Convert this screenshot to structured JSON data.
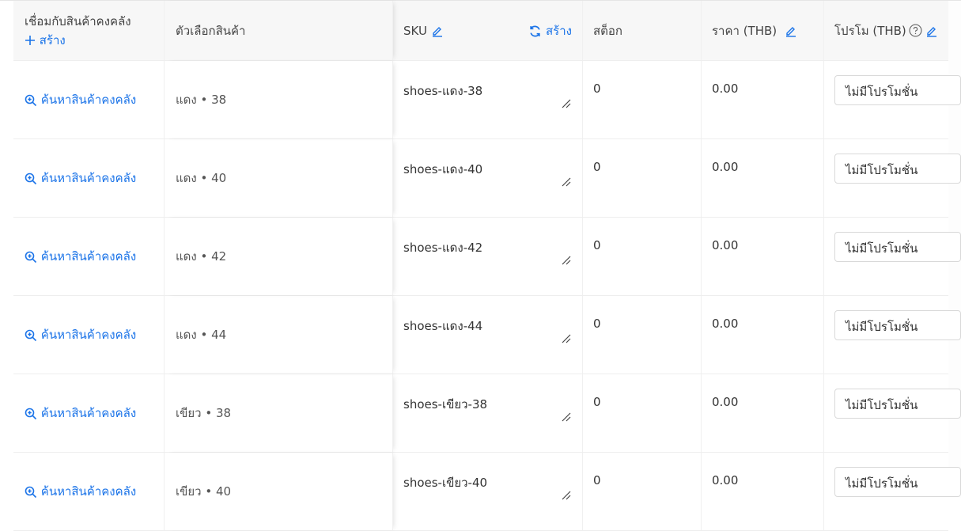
{
  "header": {
    "link_col": "เชื่อมกับสินค้าคงคลัง",
    "create_label": "สร้าง",
    "option_col": "ตัวเลือกสินค้า",
    "sku_col": "SKU",
    "sku_generate": "สร้าง",
    "stock_col": "สต็อก",
    "price_col": "ราคา (THB)",
    "promo_col": "โปรโม (THB)"
  },
  "accent_color": "#1a73e8",
  "rows": [
    {
      "link": "ค้นหาสินค้าคงคลัง",
      "option": "แดง • 38",
      "sku": "shoes-แดง-38",
      "stock": "0",
      "price": "0.00",
      "promo": "ไม่มีโปรโมชั่น"
    },
    {
      "link": "ค้นหาสินค้าคงคลัง",
      "option": "แดง • 40",
      "sku": "shoes-แดง-40",
      "stock": "0",
      "price": "0.00",
      "promo": "ไม่มีโปรโมชั่น"
    },
    {
      "link": "ค้นหาสินค้าคงคลัง",
      "option": "แดง • 42",
      "sku": "shoes-แดง-42",
      "stock": "0",
      "price": "0.00",
      "promo": "ไม่มีโปรโมชั่น"
    },
    {
      "link": "ค้นหาสินค้าคงคลัง",
      "option": "แดง • 44",
      "sku": "shoes-แดง-44",
      "stock": "0",
      "price": "0.00",
      "promo": "ไม่มีโปรโมชั่น"
    },
    {
      "link": "ค้นหาสินค้าคงคลัง",
      "option": "เขียว • 38",
      "sku": "shoes-เขียว-38",
      "stock": "0",
      "price": "0.00",
      "promo": "ไม่มีโปรโมชั่น"
    },
    {
      "link": "ค้นหาสินค้าคงคลัง",
      "option": "เขียว • 40",
      "sku": "shoes-เขียว-40",
      "stock": "0",
      "price": "0.00",
      "promo": "ไม่มีโปรโมชั่น"
    }
  ]
}
